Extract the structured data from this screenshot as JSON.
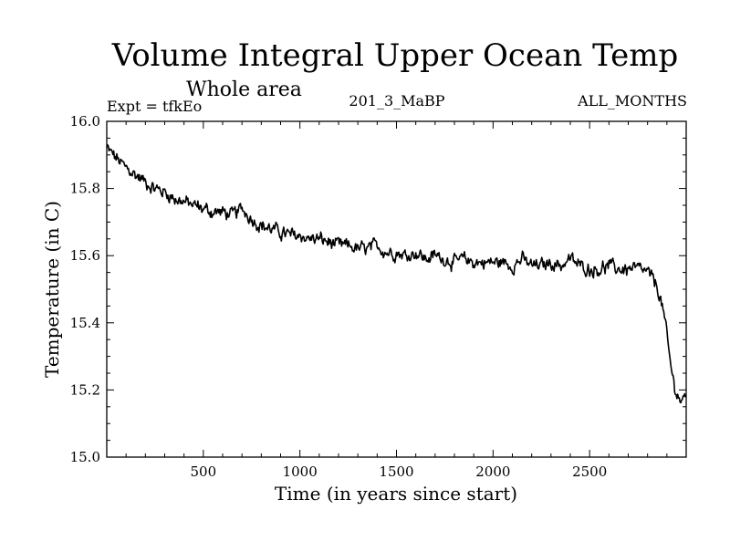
{
  "chart_data": {
    "type": "line",
    "title": "Volume Integral Upper Ocean Temp",
    "subtitle": "Whole area",
    "experiment": "Expt = tfkEo",
    "run_label": "201_3_MaBP",
    "months_label": "ALL_MONTHS",
    "xlabel": "Time (in years since start)",
    "ylabel": "Temperature (in C)",
    "xlim": [
      0,
      3000
    ],
    "ylim": [
      15.0,
      16.0
    ],
    "x_ticks": [
      500,
      1000,
      1500,
      2000,
      2500
    ],
    "x_tick_labels": [
      "500",
      "1000",
      "1500",
      "2000",
      "2500"
    ],
    "y_ticks": [
      15.0,
      15.2,
      15.4,
      15.6,
      15.8,
      16.0
    ],
    "y_tick_labels": [
      "15.0",
      "15.2",
      "15.4",
      "15.6",
      "15.8",
      "16.0"
    ],
    "grid": false,
    "legend": "none",
    "line_color": "#000000",
    "series": [
      {
        "x": [
          0,
          50,
          100,
          150,
          200,
          250,
          300,
          350,
          400,
          450,
          500,
          550,
          600,
          650,
          700,
          750,
          800,
          850,
          900,
          950,
          1000,
          1050,
          1100,
          1150,
          1200,
          1250,
          1300,
          1350,
          1400,
          1450,
          1500,
          1550,
          1600,
          1650,
          1700,
          1750,
          1800,
          1850,
          1900,
          1950,
          2000,
          2050,
          2100,
          2150,
          2200,
          2250,
          2300,
          2350,
          2400,
          2450,
          2500,
          2550,
          2600,
          2650,
          2700,
          2750,
          2800,
          2850,
          2880,
          2900,
          2920,
          2940,
          2960,
          2980,
          3000
        ],
        "y": [
          15.92,
          15.89,
          15.86,
          15.84,
          15.82,
          15.8,
          15.79,
          15.77,
          15.76,
          15.75,
          15.74,
          15.73,
          15.73,
          15.72,
          15.74,
          15.71,
          15.69,
          15.68,
          15.67,
          15.66,
          15.66,
          15.65,
          15.65,
          15.64,
          15.63,
          15.63,
          15.62,
          15.62,
          15.63,
          15.61,
          15.61,
          15.6,
          15.61,
          15.59,
          15.6,
          15.59,
          15.58,
          15.59,
          15.58,
          15.58,
          15.58,
          15.58,
          15.57,
          15.59,
          15.57,
          15.57,
          15.58,
          15.57,
          15.59,
          15.57,
          15.56,
          15.56,
          15.57,
          15.56,
          15.56,
          15.56,
          15.55,
          15.51,
          15.44,
          15.36,
          15.27,
          15.21,
          15.18,
          15.16,
          15.19
        ]
      }
    ]
  }
}
